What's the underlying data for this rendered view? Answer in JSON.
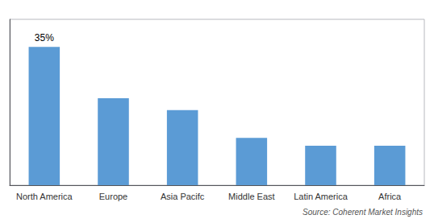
{
  "chart_data": {
    "type": "bar",
    "categories": [
      "North America",
      "Europe",
      "Asia Pacifc",
      "Middle East",
      "Latin America",
      "Africa"
    ],
    "values": [
      35,
      22,
      19,
      12,
      10,
      10
    ],
    "color": "#5b9bd5",
    "ylim": [
      0,
      42
    ],
    "yticks": [],
    "tick_labels": "x",
    "grid": false,
    "annotations": [
      {
        "text": "35%",
        "category": "North America"
      }
    ],
    "source": "Source: Coherent Market Insights"
  }
}
